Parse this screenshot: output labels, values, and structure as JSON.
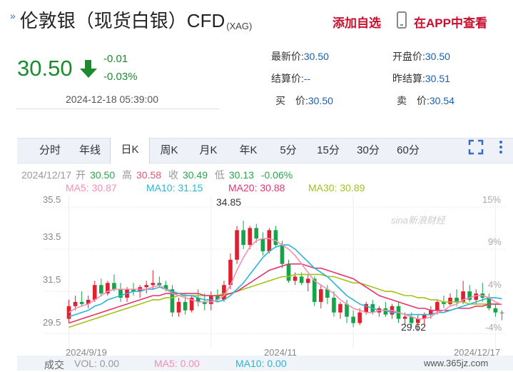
{
  "header": {
    "title": "伦敦银（现货白银）CFD",
    "title_suffix": "(XAG)",
    "add_watchlist": "添加自选",
    "view_in_app": "在APP中查看"
  },
  "quote": {
    "price": "30.50",
    "change": "-0.01",
    "change_pct": "-0.03%",
    "timestamp": "2024-12-18 05:39:00",
    "fields": [
      {
        "label": "最新价:",
        "value": "30.50"
      },
      {
        "label": "开盘价:",
        "value": "30.50"
      },
      {
        "label": "结算价:",
        "value": "--"
      },
      {
        "label": "昨结算:",
        "value": "30.51"
      },
      {
        "label": "买　价:",
        "value": "30.50"
      },
      {
        "label": "卖　价:",
        "value": "30.54"
      }
    ]
  },
  "tabs": [
    "分时",
    "年线",
    "日K",
    "周K",
    "月K",
    "年K",
    "5分",
    "15分",
    "30分",
    "60分"
  ],
  "active_tab": "日K",
  "info_line": {
    "date": "2024/12/17",
    "open_label": "开",
    "open": "30.50",
    "high_label": "高",
    "high": "30.58",
    "close_label": "收",
    "close": "30.49",
    "low_label": "低",
    "low": "30.13",
    "change_pct": "-0.06%"
  },
  "ma_legend": {
    "ma5": "MA5: 30.87",
    "ma10": "MA10: 31.15",
    "ma20": "MA20: 30.88",
    "ma30": "MA30: 30.89"
  },
  "colors": {
    "up": "#e0202e",
    "down": "#16a34a",
    "ma5": "#f48fb1",
    "ma10": "#29b6d6",
    "ma20": "#e8336d",
    "ma30": "#a3c21a",
    "accent": "#c8102e"
  },
  "chart_data": {
    "type": "candlestick",
    "y_ticks": [
      "35.5",
      "33.5",
      "31.5",
      "29.5"
    ],
    "y_pct_ticks": [
      "15%",
      "9%",
      "4%",
      "-4%"
    ],
    "x_ticks": [
      "2024/9/19",
      "2024/11",
      "2024/12/17"
    ],
    "annotations": {
      "max": "34.85",
      "min": "29.62"
    },
    "ylim": [
      29.0,
      35.9
    ],
    "candles": [
      {
        "o": 30.2,
        "h": 31.1,
        "l": 30.0,
        "c": 30.8
      },
      {
        "o": 30.8,
        "h": 31.3,
        "l": 30.6,
        "c": 31.0
      },
      {
        "o": 31.0,
        "h": 31.5,
        "l": 30.8,
        "c": 30.9
      },
      {
        "o": 30.9,
        "h": 31.3,
        "l": 30.7,
        "c": 31.1
      },
      {
        "o": 31.1,
        "h": 32.0,
        "l": 31.0,
        "c": 31.8
      },
      {
        "o": 31.8,
        "h": 32.1,
        "l": 31.3,
        "c": 31.4
      },
      {
        "o": 31.4,
        "h": 32.0,
        "l": 31.3,
        "c": 31.9
      },
      {
        "o": 31.9,
        "h": 32.3,
        "l": 31.5,
        "c": 31.6
      },
      {
        "o": 31.6,
        "h": 31.9,
        "l": 31.0,
        "c": 31.2
      },
      {
        "o": 31.2,
        "h": 31.7,
        "l": 31.0,
        "c": 31.6
      },
      {
        "o": 31.6,
        "h": 31.9,
        "l": 31.3,
        "c": 31.5
      },
      {
        "o": 31.5,
        "h": 31.8,
        "l": 31.2,
        "c": 31.7
      },
      {
        "o": 31.7,
        "h": 32.0,
        "l": 31.4,
        "c": 31.8
      },
      {
        "o": 31.8,
        "h": 32.5,
        "l": 31.6,
        "c": 31.9
      },
      {
        "o": 31.9,
        "h": 32.2,
        "l": 31.7,
        "c": 31.8
      },
      {
        "o": 31.8,
        "h": 32.0,
        "l": 31.5,
        "c": 31.6
      },
      {
        "o": 31.6,
        "h": 31.8,
        "l": 30.3,
        "c": 30.5
      },
      {
        "o": 30.5,
        "h": 31.2,
        "l": 30.3,
        "c": 31.0
      },
      {
        "o": 31.0,
        "h": 31.4,
        "l": 30.4,
        "c": 30.6
      },
      {
        "o": 30.6,
        "h": 31.3,
        "l": 30.5,
        "c": 31.2
      },
      {
        "o": 31.2,
        "h": 31.6,
        "l": 30.8,
        "c": 31.0
      },
      {
        "o": 31.0,
        "h": 31.4,
        "l": 30.6,
        "c": 30.9
      },
      {
        "o": 30.9,
        "h": 31.5,
        "l": 30.6,
        "c": 31.3
      },
      {
        "o": 31.3,
        "h": 31.6,
        "l": 31.0,
        "c": 31.1
      },
      {
        "o": 31.1,
        "h": 32.0,
        "l": 31.0,
        "c": 31.8
      },
      {
        "o": 31.8,
        "h": 33.3,
        "l": 31.6,
        "c": 33.0
      },
      {
        "o": 33.0,
        "h": 34.6,
        "l": 32.8,
        "c": 34.4
      },
      {
        "o": 34.4,
        "h": 34.85,
        "l": 33.5,
        "c": 33.7
      },
      {
        "o": 33.7,
        "h": 34.6,
        "l": 33.5,
        "c": 34.5
      },
      {
        "o": 34.5,
        "h": 34.7,
        "l": 33.8,
        "c": 34.0
      },
      {
        "o": 34.0,
        "h": 34.3,
        "l": 33.2,
        "c": 33.4
      },
      {
        "o": 33.4,
        "h": 34.5,
        "l": 33.3,
        "c": 34.4
      },
      {
        "o": 34.4,
        "h": 34.6,
        "l": 33.6,
        "c": 33.7
      },
      {
        "o": 33.7,
        "h": 33.9,
        "l": 32.6,
        "c": 32.8
      },
      {
        "o": 32.8,
        "h": 33.0,
        "l": 31.9,
        "c": 32.0
      },
      {
        "o": 32.0,
        "h": 32.4,
        "l": 31.8,
        "c": 32.2
      },
      {
        "o": 32.2,
        "h": 32.4,
        "l": 31.8,
        "c": 31.9
      },
      {
        "o": 31.9,
        "h": 32.3,
        "l": 31.5,
        "c": 32.1
      },
      {
        "o": 32.1,
        "h": 32.2,
        "l": 30.8,
        "c": 31.0
      },
      {
        "o": 31.0,
        "h": 31.8,
        "l": 30.7,
        "c": 31.6
      },
      {
        "o": 31.6,
        "h": 31.8,
        "l": 30.9,
        "c": 31.2
      },
      {
        "o": 31.2,
        "h": 31.5,
        "l": 30.3,
        "c": 30.5
      },
      {
        "o": 30.5,
        "h": 31.0,
        "l": 30.2,
        "c": 30.9
      },
      {
        "o": 30.9,
        "h": 31.1,
        "l": 30.0,
        "c": 30.3
      },
      {
        "o": 30.3,
        "h": 30.6,
        "l": 29.8,
        "c": 30.0
      },
      {
        "o": 30.0,
        "h": 30.7,
        "l": 29.9,
        "c": 30.5
      },
      {
        "o": 30.5,
        "h": 31.0,
        "l": 30.4,
        "c": 30.9
      },
      {
        "o": 30.9,
        "h": 31.1,
        "l": 30.4,
        "c": 30.5
      },
      {
        "o": 30.5,
        "h": 30.8,
        "l": 30.3,
        "c": 30.7
      },
      {
        "o": 30.7,
        "h": 31.0,
        "l": 30.3,
        "c": 30.4
      },
      {
        "o": 30.4,
        "h": 30.9,
        "l": 30.2,
        "c": 30.8
      },
      {
        "o": 30.8,
        "h": 31.0,
        "l": 30.0,
        "c": 30.2
      },
      {
        "o": 30.2,
        "h": 30.5,
        "l": 29.9,
        "c": 30.3
      },
      {
        "o": 30.3,
        "h": 30.5,
        "l": 29.8,
        "c": 30.0
      },
      {
        "o": 30.0,
        "h": 30.4,
        "l": 29.62,
        "c": 30.2
      },
      {
        "o": 30.2,
        "h": 30.5,
        "l": 29.9,
        "c": 30.4
      },
      {
        "o": 30.4,
        "h": 30.8,
        "l": 30.2,
        "c": 30.6
      },
      {
        "o": 30.6,
        "h": 31.1,
        "l": 30.4,
        "c": 31.0
      },
      {
        "o": 31.0,
        "h": 31.3,
        "l": 30.7,
        "c": 30.9
      },
      {
        "o": 30.9,
        "h": 31.4,
        "l": 30.8,
        "c": 31.2
      },
      {
        "o": 31.2,
        "h": 31.6,
        "l": 30.8,
        "c": 31.0
      },
      {
        "o": 31.0,
        "h": 32.0,
        "l": 30.9,
        "c": 31.5
      },
      {
        "o": 31.5,
        "h": 31.8,
        "l": 31.0,
        "c": 31.1
      },
      {
        "o": 31.1,
        "h": 31.6,
        "l": 30.9,
        "c": 31.4
      },
      {
        "o": 31.4,
        "h": 31.9,
        "l": 31.0,
        "c": 31.2
      },
      {
        "o": 31.2,
        "h": 31.4,
        "l": 30.6,
        "c": 30.7
      },
      {
        "o": 30.7,
        "h": 30.9,
        "l": 30.3,
        "c": 30.5
      },
      {
        "o": 30.5,
        "h": 30.6,
        "l": 30.13,
        "c": 30.49
      }
    ],
    "ma5": [
      30.5,
      30.7,
      30.8,
      30.9,
      31.1,
      31.3,
      31.5,
      31.6,
      31.6,
      31.6,
      31.6,
      31.6,
      31.6,
      31.7,
      31.8,
      31.6,
      31.4,
      31.3,
      31.2,
      31.1,
      31.0,
      31.0,
      31.0,
      31.1,
      31.3,
      31.8,
      32.5,
      33.1,
      33.6,
      33.9,
      34.0,
      34.0,
      33.9,
      33.7,
      33.5,
      33.2,
      32.8,
      32.4,
      32.0,
      31.8,
      31.6,
      31.4,
      31.1,
      30.9,
      30.7,
      30.6,
      30.5,
      30.5,
      30.6,
      30.6,
      30.6,
      30.5,
      30.4,
      30.3,
      30.2,
      30.2,
      30.3,
      30.5,
      30.6,
      30.8,
      30.9,
      31.1,
      31.2,
      31.3,
      31.3,
      31.2,
      31.0,
      30.87
    ],
    "ma10": [
      30.3,
      30.4,
      30.5,
      30.6,
      30.8,
      30.9,
      31.1,
      31.2,
      31.3,
      31.4,
      31.5,
      31.5,
      31.6,
      31.6,
      31.7,
      31.6,
      31.5,
      31.4,
      31.3,
      31.3,
      31.2,
      31.1,
      31.1,
      31.0,
      31.1,
      31.3,
      31.6,
      31.9,
      32.3,
      32.7,
      33.1,
      33.4,
      33.6,
      33.7,
      33.7,
      33.5,
      33.2,
      32.9,
      32.6,
      32.4,
      32.2,
      31.9,
      31.6,
      31.3,
      31.1,
      30.9,
      30.8,
      30.7,
      30.6,
      30.6,
      30.5,
      30.5,
      30.4,
      30.4,
      30.4,
      30.4,
      30.4,
      30.5,
      30.5,
      30.6,
      30.7,
      30.8,
      30.9,
      31.0,
      31.1,
      31.2,
      31.2,
      31.15
    ],
    "ma20": [
      30.0,
      30.1,
      30.2,
      30.3,
      30.4,
      30.5,
      30.6,
      30.7,
      30.8,
      30.9,
      31.0,
      31.1,
      31.2,
      31.3,
      31.3,
      31.4,
      31.4,
      31.4,
      31.4,
      31.4,
      31.4,
      31.3,
      31.3,
      31.3,
      31.3,
      31.4,
      31.5,
      31.7,
      31.9,
      32.1,
      32.3,
      32.5,
      32.6,
      32.7,
      32.8,
      32.8,
      32.8,
      32.7,
      32.6,
      32.6,
      32.5,
      32.4,
      32.3,
      32.2,
      32.1,
      31.9,
      31.7,
      31.5,
      31.3,
      31.2,
      31.1,
      31.0,
      30.9,
      30.8,
      30.7,
      30.7,
      30.6,
      30.6,
      30.6,
      30.6,
      30.7,
      30.7,
      30.7,
      30.8,
      30.8,
      30.9,
      30.9,
      30.88
    ],
    "ma30": [
      29.8,
      29.9,
      30.0,
      30.1,
      30.2,
      30.3,
      30.4,
      30.5,
      30.6,
      30.7,
      30.8,
      30.9,
      31.0,
      31.1,
      31.1,
      31.2,
      31.2,
      31.3,
      31.3,
      31.3,
      31.3,
      31.3,
      31.3,
      31.3,
      31.4,
      31.4,
      31.5,
      31.6,
      31.7,
      31.8,
      31.9,
      32.0,
      32.1,
      32.2,
      32.2,
      32.3,
      32.3,
      32.3,
      32.3,
      32.3,
      32.2,
      32.2,
      32.1,
      32.0,
      31.9,
      31.9,
      31.8,
      31.7,
      31.6,
      31.5,
      31.5,
      31.4,
      31.3,
      31.3,
      31.2,
      31.2,
      31.1,
      31.1,
      31.0,
      31.0,
      31.0,
      31.0,
      30.9,
      30.9,
      30.9,
      30.9,
      30.9,
      30.89
    ]
  },
  "volume_bar": {
    "label": "成交",
    "vol": "VOL: 0.00",
    "ma5": "MA5: 0.00",
    "ma10": "MA10: 0.00"
  },
  "watermark": "sina新浪财经",
  "site_mark": "www.365jz.com"
}
